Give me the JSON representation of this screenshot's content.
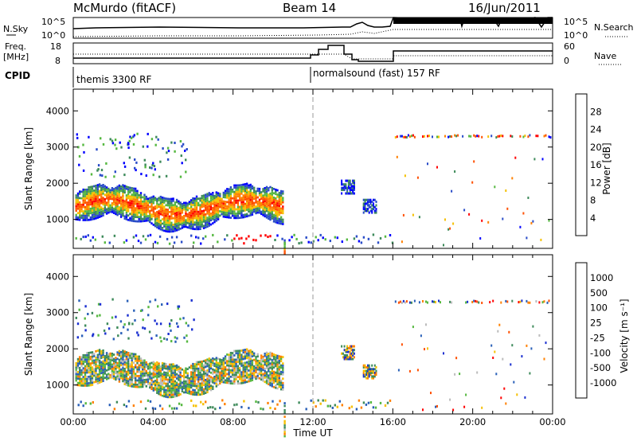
{
  "header": {
    "station": "McMurdo (fitACF)",
    "beam": "Beam 14",
    "date": "16/Jun/2011"
  },
  "panels": {
    "nsky": {
      "left_label": "N.Sky",
      "left_ticks": [
        "10^5",
        "10^0"
      ],
      "right_label": "N.Search",
      "right_ticks": [
        "10^5",
        "10^0"
      ]
    },
    "freq": {
      "left_label_top": "Freq.",
      "left_label_bottom": "[MHz]",
      "left_ticks": [
        "18",
        "8"
      ],
      "right_label": "Nave",
      "right_ticks": [
        "60",
        "0"
      ]
    },
    "cpid": {
      "label": "CPID",
      "segments": [
        "themis 3300 RF",
        "normalsound (fast) 157 RF"
      ]
    }
  },
  "chart_data": [
    {
      "type": "heatmap",
      "name": "power",
      "ylabel": "Slant Range [km]",
      "yticks": [
        "4000",
        "3000",
        "2000",
        "1000"
      ],
      "ylim": [
        200,
        4600
      ],
      "xlim": [
        0,
        24
      ],
      "colorbar_label": "Power [dB]",
      "colorbar_ticks": [
        "28",
        "24",
        "20",
        "16",
        "12",
        "8",
        "4"
      ],
      "colors": [
        "#0000ff",
        "#2a4cc8",
        "#3d8a5a",
        "#55b840",
        "#f5c000",
        "#ff8000",
        "#ff5000",
        "#ff0000"
      ]
    },
    {
      "type": "heatmap",
      "name": "velocity",
      "ylabel": "Slant Range [km]",
      "yticks": [
        "4000",
        "3000",
        "2000",
        "1000"
      ],
      "ylim": [
        200,
        4600
      ],
      "xlim": [
        0,
        24
      ],
      "colorbar_label": "Velocity [m s⁻¹]",
      "colorbar_ticks": [
        "1000",
        "500",
        "100",
        "25",
        "-25",
        "-100",
        "-500",
        "-1000"
      ],
      "colors": [
        "#1a2fd0",
        "#2a60b8",
        "#3d8a5a",
        "#55b840",
        "#bbbbbb",
        "#f5c000",
        "#ff8000",
        "#ff5000",
        "#ff0000"
      ]
    }
  ],
  "x_axis": {
    "label": "Time UT",
    "ticks": [
      "00:00",
      "04:00",
      "08:00",
      "12:00",
      "16:00",
      "20:00",
      "00:00"
    ]
  }
}
